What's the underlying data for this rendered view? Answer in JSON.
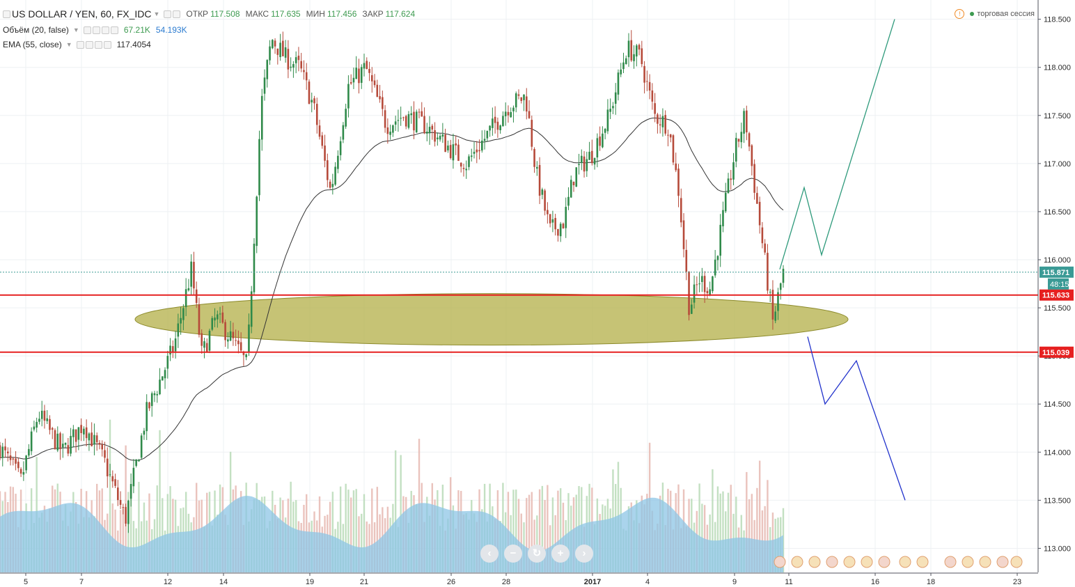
{
  "header": {
    "symbol_title": "US DOLLAR / YEN, 60, FX_IDC",
    "ohlc": [
      {
        "label": "ОТКР",
        "value": "117.508"
      },
      {
        "label": "МАКС",
        "value": "117.635"
      },
      {
        "label": "МИН",
        "value": "117.456"
      },
      {
        "label": "ЗАКР",
        "value": "117.624"
      }
    ],
    "session_label": "торговая сессия",
    "session_warning_icon": "!"
  },
  "indicators": [
    {
      "name": "Объём (20, false)",
      "values": [
        "67.21K",
        "54.193K"
      ]
    },
    {
      "name": "EMA (55, close)",
      "values": [
        "117.4054"
      ]
    }
  ],
  "nav_buttons": [
    {
      "name": "scroll-left-icon",
      "glyph": "‹"
    },
    {
      "name": "zoom-out-icon",
      "glyph": "−"
    },
    {
      "name": "reset-icon",
      "glyph": "↻"
    },
    {
      "name": "zoom-in-icon",
      "glyph": "+"
    },
    {
      "name": "scroll-right-icon",
      "glyph": "›"
    }
  ],
  "chart_data": {
    "type": "candlestick",
    "y_axis": {
      "ylim": [
        112.75,
        118.7
      ],
      "ticks": [
        "113.000",
        "113.500",
        "114.000",
        "114.500",
        "115.000",
        "115.500",
        "116.000",
        "116.500",
        "117.000",
        "117.500",
        "118.000",
        "118.500"
      ]
    },
    "x_axis": {
      "ticks": [
        "5",
        "7",
        "12",
        "14",
        "19",
        "21",
        "26",
        "28",
        "2017",
        "4",
        "9",
        "11",
        "16",
        "18",
        "23"
      ]
    },
    "price_path": [
      [
        0,
        114.05
      ],
      [
        0.03,
        113.7
      ],
      [
        0.055,
        114.4
      ],
      [
        0.09,
        114.0
      ],
      [
        0.12,
        114.3
      ],
      [
        0.15,
        113.9
      ],
      [
        0.18,
        113.3
      ],
      [
        0.21,
        114.4
      ],
      [
        0.25,
        115.1
      ],
      [
        0.275,
        115.9
      ],
      [
        0.29,
        115.0
      ],
      [
        0.31,
        115.4
      ],
      [
        0.33,
        115.2
      ],
      [
        0.355,
        114.9
      ],
      [
        0.375,
        117.6
      ],
      [
        0.39,
        118.3
      ],
      [
        0.41,
        118.1
      ],
      [
        0.43,
        118.0
      ],
      [
        0.45,
        117.6
      ],
      [
        0.475,
        116.7
      ],
      [
        0.5,
        117.8
      ],
      [
        0.525,
        118.0
      ],
      [
        0.555,
        117.4
      ],
      [
        0.58,
        117.5
      ],
      [
        0.61,
        117.4
      ],
      [
        0.64,
        117.2
      ],
      [
        0.67,
        117.0
      ],
      [
        0.7,
        117.3
      ],
      [
        0.73,
        117.6
      ],
      [
        0.755,
        117.7
      ],
      [
        0.77,
        116.9
      ],
      [
        0.79,
        116.3
      ],
      [
        0.81,
        116.4
      ],
      [
        0.825,
        116.9
      ],
      [
        0.85,
        117.1
      ],
      [
        0.875,
        117.5
      ],
      [
        0.9,
        118.2
      ],
      [
        0.92,
        118.1
      ],
      [
        0.94,
        117.5
      ],
      [
        0.96,
        117.4
      ],
      [
        0.975,
        116.7
      ],
      [
        0.99,
        115.5
      ],
      [
        1.005,
        115.8
      ],
      [
        1.02,
        115.7
      ],
      [
        1.04,
        116.5
      ],
      [
        1.055,
        117.1
      ],
      [
        1.07,
        117.5
      ],
      [
        1.085,
        116.7
      ],
      [
        1.1,
        115.9
      ],
      [
        1.11,
        115.35
      ],
      [
        1.125,
        115.87
      ]
    ],
    "horizontal_levels": [
      {
        "price": 115.871,
        "label": "115.871",
        "color": "#3a9a95",
        "style": "dotted",
        "label_bg": "#3a9a95"
      },
      {
        "price": 115.633,
        "label": "115.633",
        "color": "#e62020",
        "style": "solid",
        "label_bg": "#e62020"
      },
      {
        "price": 115.039,
        "label": "115.039",
        "color": "#e62020",
        "style": "solid",
        "label_bg": "#e62020"
      }
    ],
    "countdown": "48:15",
    "projection_up": {
      "color": "#2e9a7b",
      "points": [
        [
          1.12,
          115.9
        ],
        [
          1.155,
          116.75
        ],
        [
          1.18,
          116.05
        ],
        [
          1.285,
          118.5
        ]
      ]
    },
    "projection_down": {
      "color": "#2233cc",
      "points": [
        [
          1.16,
          115.2
        ],
        [
          1.185,
          114.5
        ],
        [
          1.23,
          114.95
        ],
        [
          1.3,
          113.5
        ]
      ]
    },
    "zone_ellipse": {
      "center_price": 115.38,
      "fill": "#b6b24e",
      "stroke": "#8c8a2a"
    },
    "colors": {
      "up": "#2f8a4a",
      "down": "#b64a3a",
      "volume": "#a8d4ec",
      "volume_area": "#8ec6e6",
      "ema": "#333333"
    },
    "legend_placement": "top-left"
  }
}
